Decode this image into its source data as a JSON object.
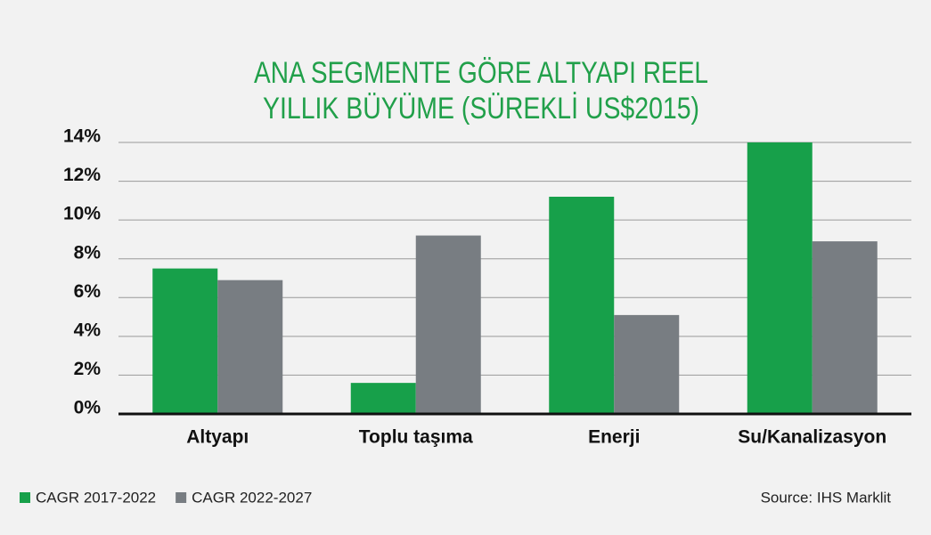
{
  "chart_data": {
    "type": "bar",
    "title": [
      "ANA SEGMENTE GÖRE ALTYAPI REEL",
      "YILLIK BÜYÜME (SÜREKLİ US$2015)"
    ],
    "categories": [
      "Altyapı",
      "Toplu taşıma",
      "Enerji",
      "Su/Kanalizasyon"
    ],
    "series": [
      {
        "name": "CAGR 2017-2022",
        "color": "#17a04a",
        "values": [
          7.5,
          1.6,
          11.2,
          14.0
        ]
      },
      {
        "name": "CAGR 2022-2027",
        "color": "#787d82",
        "values": [
          6.9,
          9.2,
          5.1,
          8.9
        ]
      }
    ],
    "ylim": [
      0,
      14
    ],
    "yticks": [
      {
        "value": 0,
        "label": "0%"
      },
      {
        "value": 2,
        "label": "2%"
      },
      {
        "value": 4,
        "label": "4%"
      },
      {
        "value": 6,
        "label": "6%"
      },
      {
        "value": 8,
        "label": "8%"
      },
      {
        "value": 10,
        "label": "10%"
      },
      {
        "value": 12,
        "label": "12%"
      },
      {
        "value": 14,
        "label": "14%"
      }
    ],
    "grid": true,
    "legend": "bottom-left",
    "source": "Source: IHS Marklit"
  }
}
